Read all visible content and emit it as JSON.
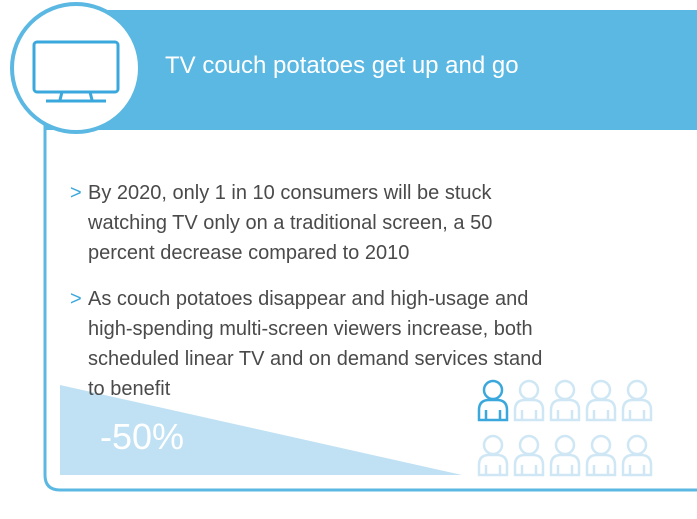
{
  "header": {
    "title": "TV couch potatoes get up and go"
  },
  "bullets": [
    "By 2020, only 1 in 10 consumers will be stuck watching TV only on a traditional screen, a 50 percent decrease compared to 2010",
    "As couch potatoes disappear and high-usage and high-spending multi-screen viewers increase, both scheduled linear TV and on demand services stand to benefit"
  ],
  "stat": "-50%"
}
